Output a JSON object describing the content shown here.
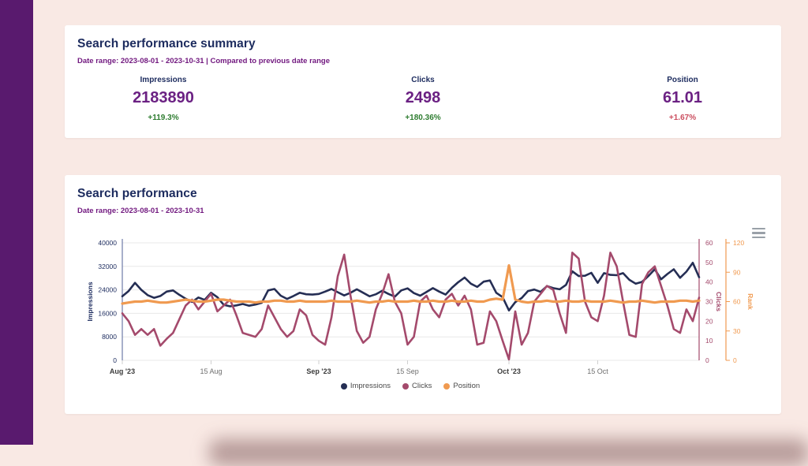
{
  "palette": {
    "background": "#f9e9e4",
    "sidebar": "#591a6e",
    "heading": "#1c2b5e",
    "subheading": "#71187f",
    "metric_value": "#6b2183",
    "positive": "#2f7d31",
    "negative": "#cb4e5f"
  },
  "summary_card": {
    "title": "Search performance summary",
    "date_range": "Date range: 2023-08-01 - 2023-10-31 | Compared to previous date range",
    "metrics": [
      {
        "label": "Impressions",
        "value": "2183890",
        "change": "+119.3%",
        "trend": "positive"
      },
      {
        "label": "Clicks",
        "value": "2498",
        "change": "+180.36%",
        "trend": "positive"
      },
      {
        "label": "Position",
        "value": "61.01",
        "change": "+1.67%",
        "trend": "negative"
      }
    ]
  },
  "chart_card": {
    "title": "Search performance",
    "date_range": "Date range: 2023-08-01 - 2023-10-31",
    "menu_icon": "hamburger-menu-icon"
  },
  "chart_data": {
    "type": "line",
    "title": "Search performance",
    "legend_position": "bottom",
    "grid": true,
    "x_axis": {
      "start_date": "2023-08-01",
      "end_date": "2023-10-31",
      "total_days": 92,
      "labels": [
        {
          "label": "Aug '23",
          "day": 0,
          "bold": true
        },
        {
          "label": "15 Aug",
          "day": 14,
          "bold": false
        },
        {
          "label": "Sep '23",
          "day": 31,
          "bold": true
        },
        {
          "label": "15 Sep",
          "day": 45,
          "bold": false
        },
        {
          "label": "Oct '23",
          "day": 61,
          "bold": true
        },
        {
          "label": "15 Oct",
          "day": 75,
          "bold": false
        }
      ]
    },
    "axes": {
      "impressions": {
        "label": "Impressions",
        "min": 0,
        "max": 40000,
        "ticks": [
          0,
          8000,
          16000,
          24000,
          32000,
          40000
        ],
        "color": "#1c2b5e",
        "side": "left"
      },
      "clicks": {
        "label": "Clicks",
        "min": 0,
        "max": 60,
        "ticks": [
          0,
          10,
          20,
          30,
          40,
          50,
          60
        ],
        "color": "#a44a6c",
        "side": "right"
      },
      "rank": {
        "label": "Rank",
        "min": 0,
        "max": 120,
        "ticks": [
          0,
          30,
          60,
          90,
          120
        ],
        "color": "#f09a50",
        "side": "right-outer"
      }
    },
    "series": [
      {
        "name": "Impressions",
        "axis": "impressions",
        "color": "#252e54",
        "width": 2.6,
        "values": [
          21800,
          23600,
          26400,
          24000,
          22200,
          21300,
          21900,
          23400,
          23800,
          22300,
          21000,
          19900,
          21400,
          20600,
          23000,
          21500,
          18900,
          18400,
          18700,
          19200,
          18600,
          19000,
          19600,
          23800,
          24300,
          22000,
          20900,
          21900,
          23000,
          22500,
          22400,
          22600,
          23400,
          24300,
          23200,
          22100,
          23000,
          24200,
          23000,
          21800,
          22500,
          23700,
          22600,
          21700,
          23800,
          24500,
          22900,
          22000,
          23300,
          24600,
          23400,
          22400,
          24700,
          26600,
          28200,
          26100,
          25000,
          26800,
          27200,
          23000,
          21500,
          17000,
          19800,
          21200,
          23600,
          24100,
          23300,
          25300,
          24600,
          24200,
          25700,
          30300,
          28700,
          28800,
          29800,
          26400,
          29700,
          29100,
          29000,
          29700,
          27400,
          26100,
          26700,
          28700,
          31000,
          27600,
          29400,
          31000,
          28100,
          30200,
          33200,
          28300
        ]
      },
      {
        "name": "Clicks",
        "axis": "clicks",
        "color": "#a44a6c",
        "width": 2.6,
        "values": [
          24,
          20,
          13,
          16,
          13,
          16,
          7.5,
          11,
          14,
          21,
          28,
          31,
          26,
          30,
          34,
          25,
          28,
          31,
          23,
          14,
          13,
          12,
          16,
          28,
          22,
          16,
          12,
          15,
          26,
          23,
          13,
          10,
          8,
          22,
          43,
          54,
          33,
          15,
          9,
          12,
          26,
          34,
          44,
          30,
          24,
          8,
          12,
          30,
          33,
          26,
          22,
          31,
          34,
          28,
          33,
          26,
          8,
          9,
          25,
          20,
          10,
          0.5,
          25,
          8,
          14,
          30,
          34,
          38,
          36,
          24,
          14,
          55,
          52,
          30,
          22,
          20,
          33,
          55,
          48,
          30,
          13,
          12,
          39,
          45,
          48,
          38,
          28,
          16,
          14,
          26,
          20,
          32
        ]
      },
      {
        "name": "Position",
        "axis": "rank",
        "color": "#f09a50",
        "width": 3.2,
        "values": [
          58,
          59,
          60,
          60,
          61,
          60,
          59,
          59,
          60,
          61,
          62,
          61,
          60,
          60,
          61,
          62,
          62,
          61,
          60,
          60,
          60,
          59,
          60,
          60,
          61,
          61,
          60,
          60,
          61,
          60,
          60,
          60,
          60,
          61,
          60,
          60,
          60,
          61,
          60,
          59,
          60,
          60,
          61,
          60,
          60,
          60,
          61,
          60,
          60,
          61,
          60,
          60,
          61,
          60,
          60,
          61,
          60,
          60,
          62,
          63,
          62,
          97,
          62,
          60,
          59,
          60,
          60,
          61,
          60,
          60,
          61,
          60,
          60,
          61,
          60,
          60,
          60,
          61,
          60,
          59,
          60,
          60,
          61,
          60,
          59,
          60,
          60,
          60,
          61,
          61,
          60,
          61
        ]
      }
    ]
  }
}
